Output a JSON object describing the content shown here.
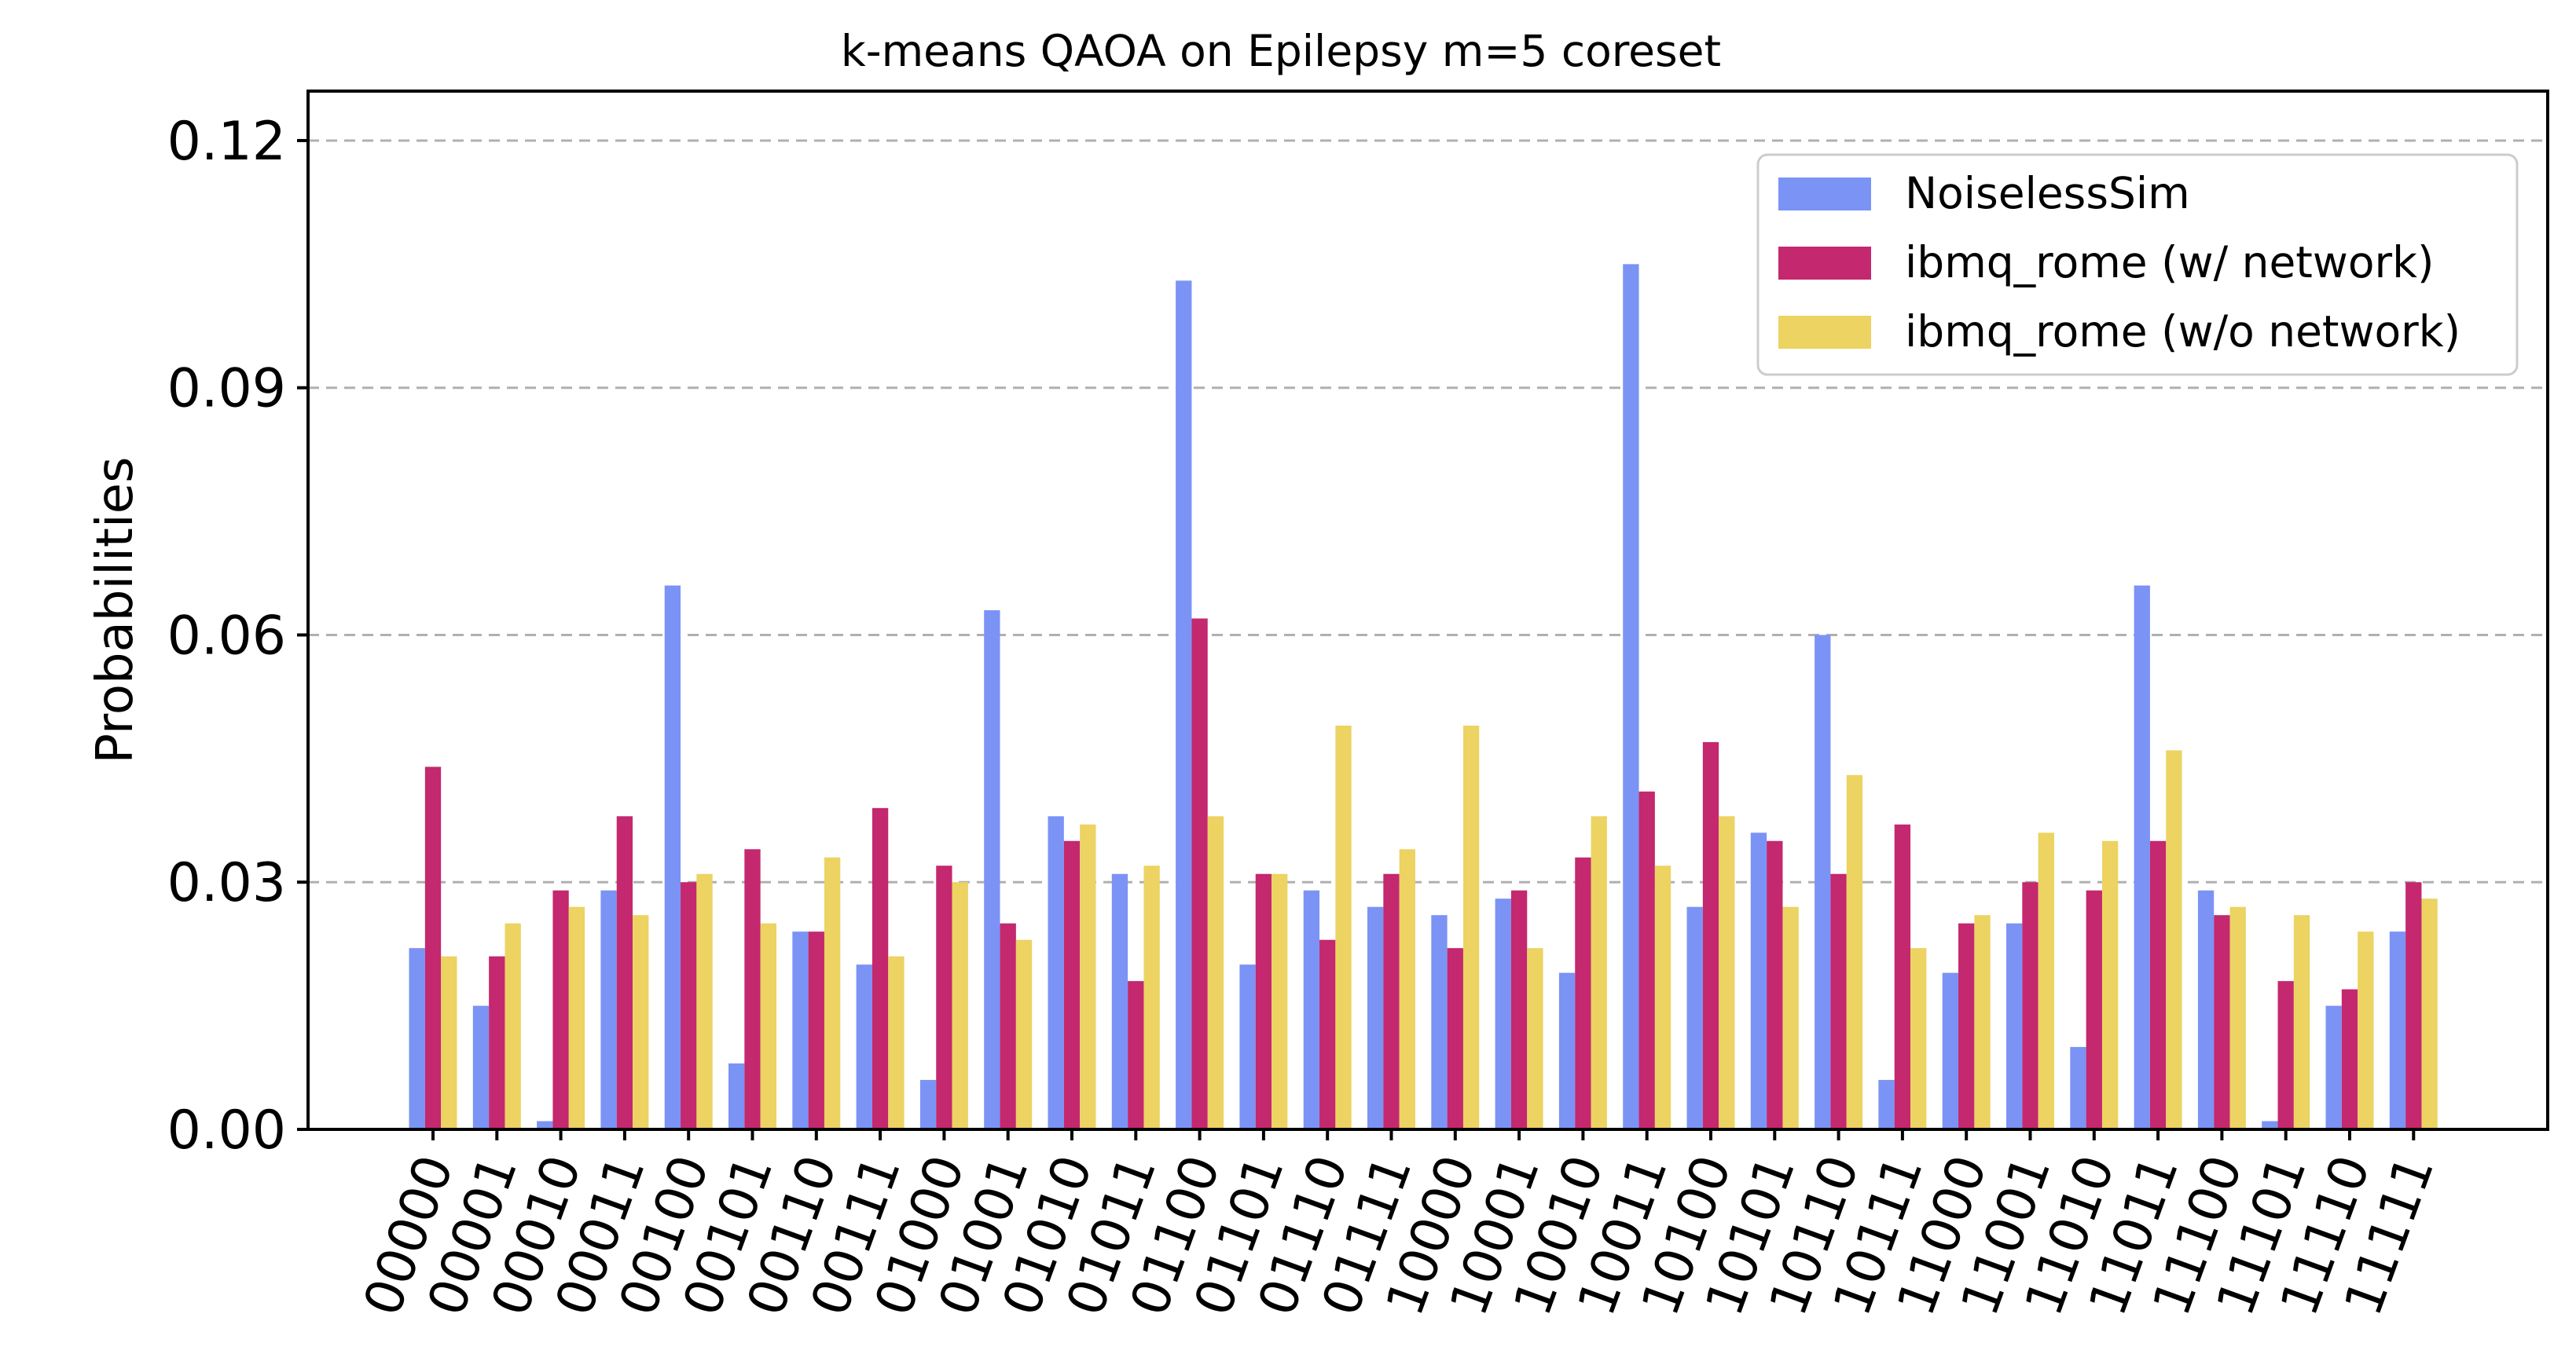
{
  "chart_data": {
    "type": "bar",
    "title": "k-means QAOA on Epilepsy m=5 coreset",
    "xlabel": "",
    "ylabel": "Probabilities",
    "ylim": [
      0,
      0.126
    ],
    "yticks": [
      0.0,
      0.03,
      0.06,
      0.09,
      0.12
    ],
    "ytick_labels": [
      "0.00",
      "0.03",
      "0.06",
      "0.09",
      "0.12"
    ],
    "grid": "y-dashed",
    "legend_position": "top-right",
    "categories": [
      "00000",
      "00001",
      "00010",
      "00011",
      "00100",
      "00101",
      "00110",
      "00111",
      "01000",
      "01001",
      "01010",
      "01011",
      "01100",
      "01101",
      "01110",
      "01111",
      "10000",
      "10001",
      "10010",
      "10011",
      "10100",
      "10101",
      "10110",
      "10111",
      "11000",
      "11001",
      "11010",
      "11011",
      "11100",
      "11101",
      "11110",
      "11111"
    ],
    "series": [
      {
        "name": "NoiselessSim",
        "color": "#7b93f5",
        "values": [
          0.022,
          0.015,
          0.001,
          0.029,
          0.066,
          0.008,
          0.024,
          0.02,
          0.006,
          0.063,
          0.038,
          0.031,
          0.103,
          0.02,
          0.029,
          0.027,
          0.026,
          0.028,
          0.019,
          0.105,
          0.027,
          0.036,
          0.06,
          0.006,
          0.019,
          0.025,
          0.01,
          0.066,
          0.029,
          0.001,
          0.015,
          0.024
        ]
      },
      {
        "name": "ibmq_rome (w/ network)",
        "color": "#c4286e",
        "values": [
          0.044,
          0.021,
          0.029,
          0.038,
          0.03,
          0.034,
          0.024,
          0.039,
          0.032,
          0.025,
          0.035,
          0.018,
          0.062,
          0.031,
          0.023,
          0.031,
          0.022,
          0.029,
          0.033,
          0.041,
          0.047,
          0.035,
          0.031,
          0.037,
          0.025,
          0.03,
          0.029,
          0.035,
          0.026,
          0.018,
          0.017,
          0.03
        ]
      },
      {
        "name": "ibmq_rome (w/o network)",
        "color": "#ecd362",
        "values": [
          0.021,
          0.025,
          0.027,
          0.026,
          0.031,
          0.025,
          0.033,
          0.021,
          0.03,
          0.023,
          0.037,
          0.032,
          0.038,
          0.031,
          0.049,
          0.034,
          0.049,
          0.022,
          0.038,
          0.032,
          0.038,
          0.027,
          0.043,
          0.022,
          0.026,
          0.036,
          0.035,
          0.046,
          0.027,
          0.026,
          0.024,
          0.028
        ]
      }
    ]
  }
}
